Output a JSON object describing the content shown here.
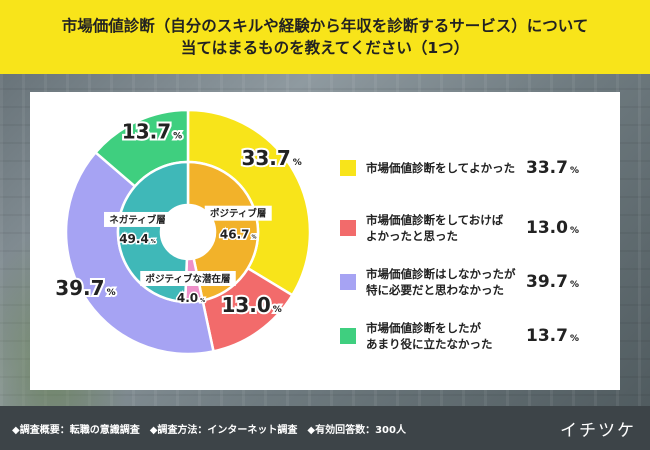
{
  "header": {
    "title_line1": "市場価値診断（自分のスキルや経験から年収を診断するサービス）について",
    "title_line2": "当てはまるものを教えてください（1つ）"
  },
  "chart_data": [
    {
      "type": "pie",
      "ring": "outer",
      "categories": [
        "市場価値診断をしてよかった",
        "市場価値診断をしておけばよかったと思った",
        "市場価値診断はしなかったが特に必要だと思わなかった",
        "市場価値診断をしたがあまり役に立たなかった"
      ],
      "values": [
        33.7,
        13.0,
        39.7,
        13.7
      ],
      "value_labels": [
        "33.7",
        "13.0",
        "39.7",
        "13.7"
      ],
      "colors": [
        "#f8e41a",
        "#f26b6b",
        "#a6a3f3",
        "#3fcf7f"
      ]
    },
    {
      "type": "pie",
      "ring": "inner",
      "categories": [
        "ポジティブ層",
        "ポジティブな潜在層",
        "ネガティブ層"
      ],
      "values": [
        46.7,
        4.0,
        49.4
      ],
      "value_labels": [
        "46.7",
        "4.0",
        "49.4"
      ],
      "colors": [
        "#f2b22a",
        "#ee90c9",
        "#3fb8b8"
      ]
    }
  ],
  "legend": [
    {
      "line1": "市場価値診断をしてよかった",
      "line2": "",
      "value": "33.7",
      "color": "#f8e41a"
    },
    {
      "line1": "市場価値診断をしておけば",
      "line2": "よかったと思った",
      "value": "13.0",
      "color": "#f26b6b"
    },
    {
      "line1": "市場価値診断はしなかったが",
      "line2": "特に必要だと思わなかった",
      "value": "39.7",
      "color": "#a6a3f3"
    },
    {
      "line1": "市場価値診断をしたが",
      "line2": "あまり役に立たなかった",
      "value": "13.7",
      "color": "#3fcf7f"
    }
  ],
  "pct_sign": "%",
  "footer": {
    "note": "◆調査概要：転職の意識調査　◆調査方法：インターネット調査　◆有効回答数：300人",
    "logo": "イチツケ"
  }
}
